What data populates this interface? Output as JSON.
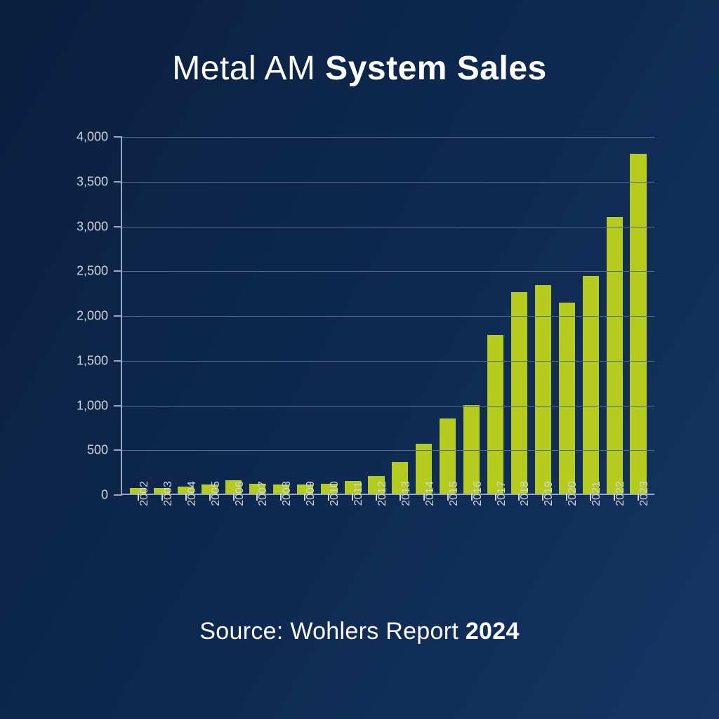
{
  "title_light": "Metal AM ",
  "title_bold": "System Sales",
  "source_light": "Source: Wohlers Report ",
  "source_bold": "2024",
  "chart": {
    "type": "bar",
    "background_gradient_from": "#0a1f3d",
    "background_gradient_to": "#163563",
    "bar_color": "#b5cc1f",
    "grid_color": "#5a6a8a",
    "axis_color": "#9aa6bf",
    "label_color": "#d0d6e0",
    "title_fontsize": 48,
    "label_fontsize": 18,
    "xlabel_fontsize": 16,
    "source_fontsize": 34,
    "y_max": 4000,
    "y_min": 0,
    "y_tick_step": 500,
    "y_tick_labels": [
      "0",
      "500",
      "1,000",
      "1,500",
      "2,000",
      "2,500",
      "3,000",
      "3,500",
      "4,000"
    ],
    "bar_width_ratio": 0.68,
    "categories": [
      "2002",
      "2003",
      "2004",
      "2005",
      "2006",
      "2007",
      "2008",
      "2009",
      "2010",
      "2011",
      "2012",
      "2013",
      "2014",
      "2015",
      "2016",
      "2017",
      "2018",
      "2019",
      "2020",
      "2021",
      "2022",
      "2023"
    ],
    "values": [
      60,
      60,
      80,
      100,
      150,
      110,
      100,
      100,
      110,
      140,
      200,
      350,
      560,
      840,
      990,
      1770,
      2250,
      2330,
      2130,
      2430,
      3090,
      3800
    ]
  }
}
